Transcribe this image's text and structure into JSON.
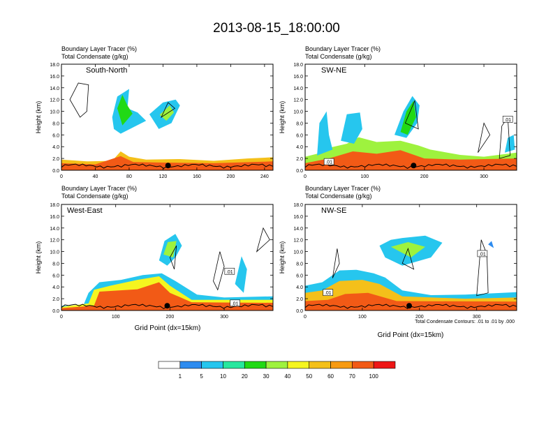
{
  "title": "2013-08-15_18:00:00",
  "panel_label_1": "Boundary Layer Tracer    (%)",
  "panel_label_2": "Total Condensate    (g/kg)",
  "contour_note": "Total Condensate Contours: .01 to .01 by .000",
  "colors": {
    "bins": [
      "#ffffff",
      "#2e8cf0",
      "#26c6ee",
      "#27e79e",
      "#21d915",
      "#9ef23e",
      "#f5f51f",
      "#f4c01a",
      "#f79a12",
      "#f25a16",
      "#ee1616"
    ],
    "contour": "#000000"
  },
  "chart_data": [
    {
      "type": "heatmap",
      "panel_title": "South-North",
      "ylabel": "Height (km)",
      "xlabel": "",
      "xlim": [
        0,
        250
      ],
      "ylim": [
        0,
        18
      ],
      "xticks": [
        "0",
        "40",
        "80",
        "120",
        "160",
        "200",
        "240"
      ],
      "yticks": [
        "0.0",
        "2.0",
        "4.0",
        "6.0",
        "8.0",
        "10.0",
        "12.0",
        "14.0",
        "16.0",
        "18.0"
      ],
      "marker_x": 126,
      "contour_labels": []
    },
    {
      "type": "heatmap",
      "panel_title": "SW-NE",
      "ylabel": "Height (km)",
      "xlabel": "",
      "xlim": [
        0,
        355
      ],
      "ylim": [
        0,
        18
      ],
      "xticks": [
        "0",
        "100",
        "200",
        "300"
      ],
      "yticks": [
        "0.0",
        "2.0",
        "4.0",
        "6.0",
        "8.0",
        "10.0",
        "12.0",
        "14.0",
        "16.0",
        "18.0"
      ],
      "marker_x": 182,
      "contour_labels": [
        ".01",
        ".01"
      ]
    },
    {
      "type": "heatmap",
      "panel_title": "West-East",
      "ylabel": "Height (km)",
      "xlabel": "Grid Point (dx=15km)",
      "xlim": [
        0,
        390
      ],
      "ylim": [
        0,
        18
      ],
      "xticks": [
        "0",
        "100",
        "200",
        "300"
      ],
      "yticks": [
        "0.0",
        "2.0",
        "4.0",
        "6.0",
        "8.0",
        "10.0",
        "12.0",
        "14.0",
        "16.0",
        "18.0"
      ],
      "marker_x": 195,
      "contour_labels": [
        ".01",
        ".01"
      ]
    },
    {
      "type": "heatmap",
      "panel_title": "NW-SE",
      "ylabel": "Height (km)",
      "xlabel": "Grid Point (dx=15km)",
      "xlim": [
        0,
        370
      ],
      "ylim": [
        0,
        18
      ],
      "xticks": [
        "0",
        "100",
        "200",
        "300"
      ],
      "yticks": [
        "0.0",
        "2.0",
        "4.0",
        "6.0",
        "8.0",
        "10.0",
        "12.0",
        "14.0",
        "16.0",
        "18.0"
      ],
      "marker_x": 182,
      "contour_labels": [
        ".01",
        ".01"
      ]
    }
  ],
  "colorbar": {
    "labels": [
      "1",
      "5",
      "10",
      "20",
      "30",
      "40",
      "50",
      "60",
      "70",
      "100"
    ]
  }
}
